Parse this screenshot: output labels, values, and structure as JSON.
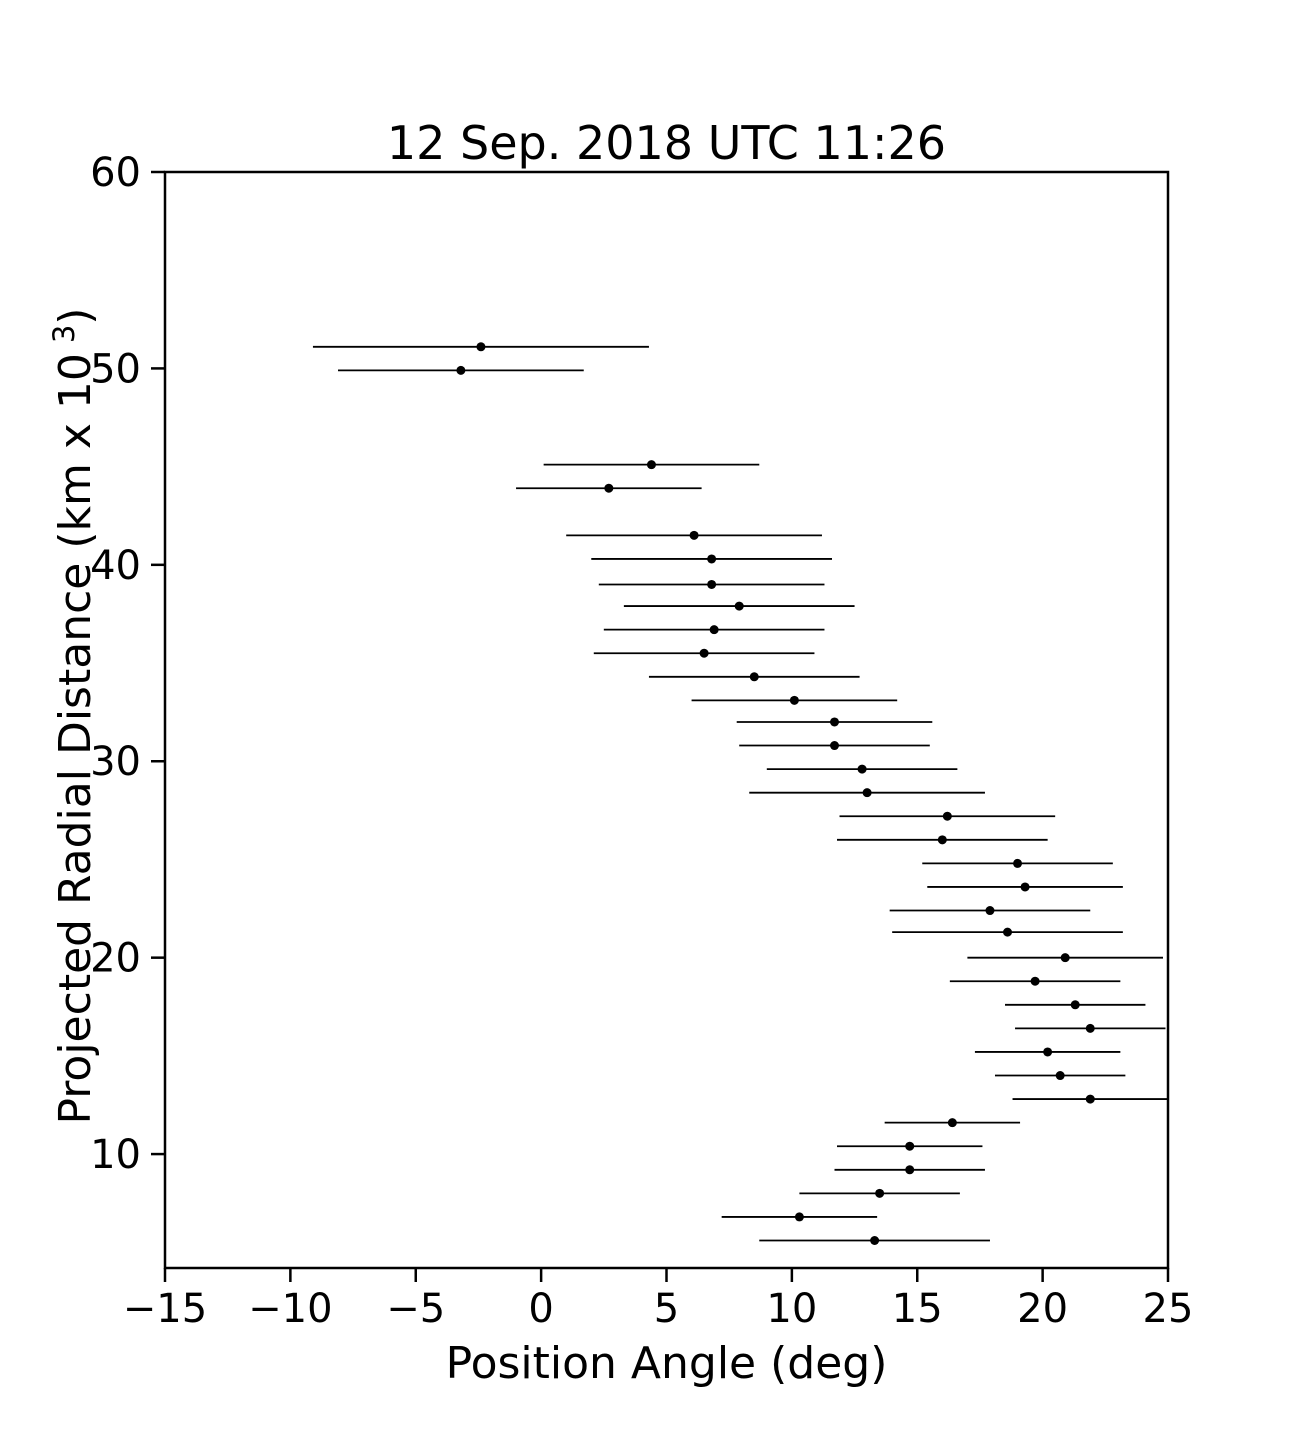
{
  "chart_data": {
    "type": "scatter",
    "title": "12 Sep. 2018 UTC 11:26",
    "xlabel": "Position Angle (deg)",
    "ylabel": "Projected Radial Distance (km x 10^3)",
    "ylabel_parts": {
      "prefix": "Projected Radial Distance (km x 10",
      "sup": "3",
      "suffix": ")"
    },
    "xlim": [
      -15,
      25
    ],
    "ylim": [
      4.2,
      60
    ],
    "xticks": [
      -15,
      -10,
      -5,
      0,
      5,
      10,
      15,
      20,
      25
    ],
    "yticks": [
      10,
      20,
      30,
      40,
      50,
      60
    ],
    "grid": false,
    "legend": "none",
    "marker_color": "#000000",
    "errorbar_color": "#000000",
    "points": [
      {
        "x": -2.4,
        "y": 51.1,
        "xerr": 6.7
      },
      {
        "x": -3.2,
        "y": 49.9,
        "xerr": 4.9
      },
      {
        "x": 4.4,
        "y": 45.1,
        "xerr": 4.3
      },
      {
        "x": 2.7,
        "y": 43.9,
        "xerr": 3.7
      },
      {
        "x": 6.1,
        "y": 41.5,
        "xerr": 5.1
      },
      {
        "x": 6.8,
        "y": 40.3,
        "xerr": 4.8
      },
      {
        "x": 6.8,
        "y": 39.0,
        "xerr": 4.5
      },
      {
        "x": 7.9,
        "y": 37.9,
        "xerr": 4.6
      },
      {
        "x": 6.9,
        "y": 36.7,
        "xerr": 4.4
      },
      {
        "x": 6.5,
        "y": 35.5,
        "xerr": 4.4
      },
      {
        "x": 8.5,
        "y": 34.3,
        "xerr": 4.2
      },
      {
        "x": 10.1,
        "y": 33.1,
        "xerr": 4.1
      },
      {
        "x": 11.7,
        "y": 32.0,
        "xerr": 3.9
      },
      {
        "x": 11.7,
        "y": 30.8,
        "xerr": 3.8
      },
      {
        "x": 12.8,
        "y": 29.6,
        "xerr": 3.8
      },
      {
        "x": 13.0,
        "y": 28.4,
        "xerr": 4.7
      },
      {
        "x": 16.2,
        "y": 27.2,
        "xerr": 4.3
      },
      {
        "x": 16.0,
        "y": 26.0,
        "xerr": 4.2
      },
      {
        "x": 19.0,
        "y": 24.8,
        "xerr": 3.8
      },
      {
        "x": 19.3,
        "y": 23.6,
        "xerr": 3.9
      },
      {
        "x": 17.9,
        "y": 22.4,
        "xerr": 4.0
      },
      {
        "x": 18.6,
        "y": 21.3,
        "xerr": 4.6
      },
      {
        "x": 20.9,
        "y": 20.0,
        "xerr": 3.9
      },
      {
        "x": 19.7,
        "y": 18.8,
        "xerr": 3.4
      },
      {
        "x": 21.3,
        "y": 17.6,
        "xerr": 2.8
      },
      {
        "x": 21.9,
        "y": 16.4,
        "xerr": 3.0
      },
      {
        "x": 20.2,
        "y": 15.2,
        "xerr": 2.9
      },
      {
        "x": 20.7,
        "y": 14.0,
        "xerr": 2.6
      },
      {
        "x": 21.9,
        "y": 12.8,
        "xerr": 3.1
      },
      {
        "x": 16.4,
        "y": 11.6,
        "xerr": 2.7
      },
      {
        "x": 14.7,
        "y": 10.4,
        "xerr": 2.9
      },
      {
        "x": 14.7,
        "y": 9.2,
        "xerr": 3.0
      },
      {
        "x": 13.5,
        "y": 8.0,
        "xerr": 3.2
      },
      {
        "x": 10.3,
        "y": 6.8,
        "xerr": 3.1
      },
      {
        "x": 13.3,
        "y": 5.6,
        "xerr": 4.6
      }
    ]
  }
}
